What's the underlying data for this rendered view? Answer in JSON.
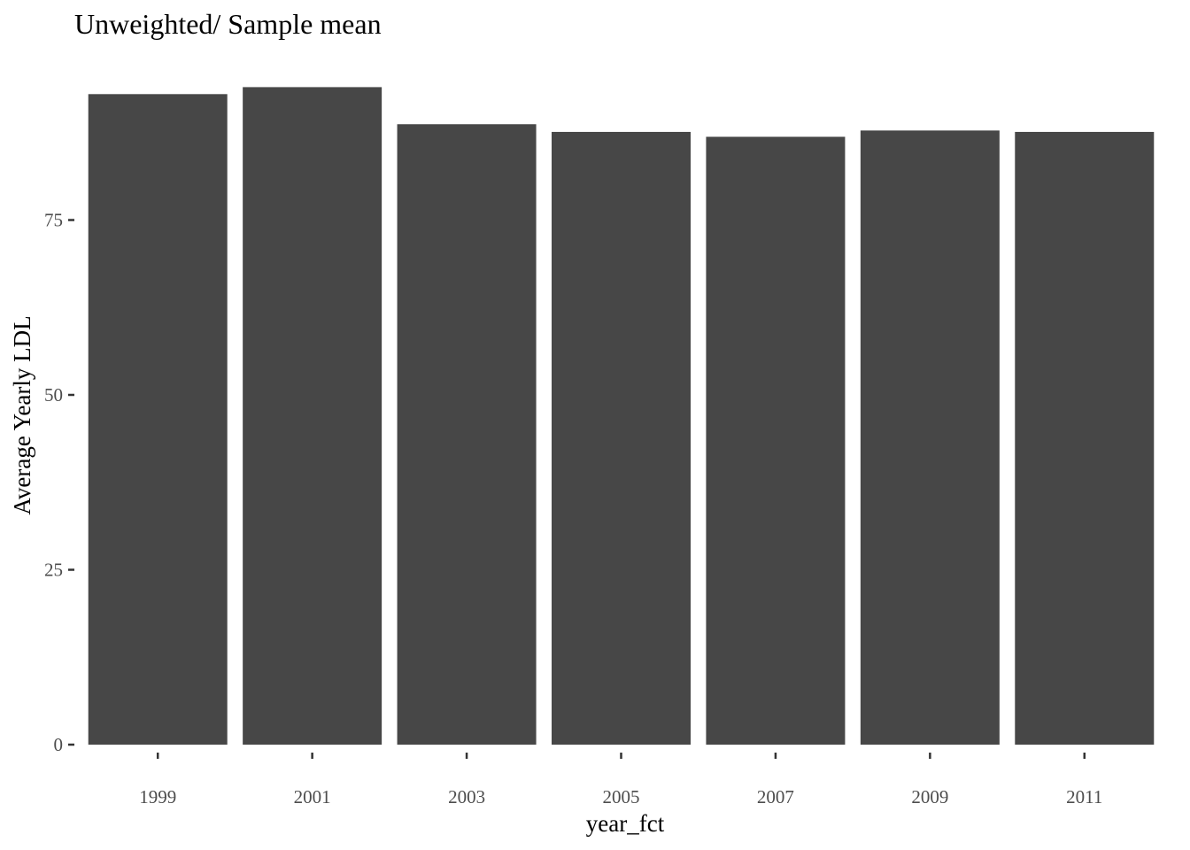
{
  "chart_data": {
    "type": "bar",
    "title": "Unweighted/ Sample mean",
    "xlabel": "year_fct",
    "ylabel": "Average Yearly LDL",
    "categories": [
      "1999",
      "2001",
      "2003",
      "2005",
      "2007",
      "2009",
      "2011"
    ],
    "values": [
      93.0,
      94.0,
      88.7,
      87.6,
      86.9,
      87.8,
      87.6
    ],
    "ylim": [
      0,
      94
    ],
    "yticks": [
      0,
      25,
      50,
      75
    ],
    "grid": false,
    "legend": "none",
    "bar_color": "#474747",
    "background_color": "#ffffff"
  }
}
